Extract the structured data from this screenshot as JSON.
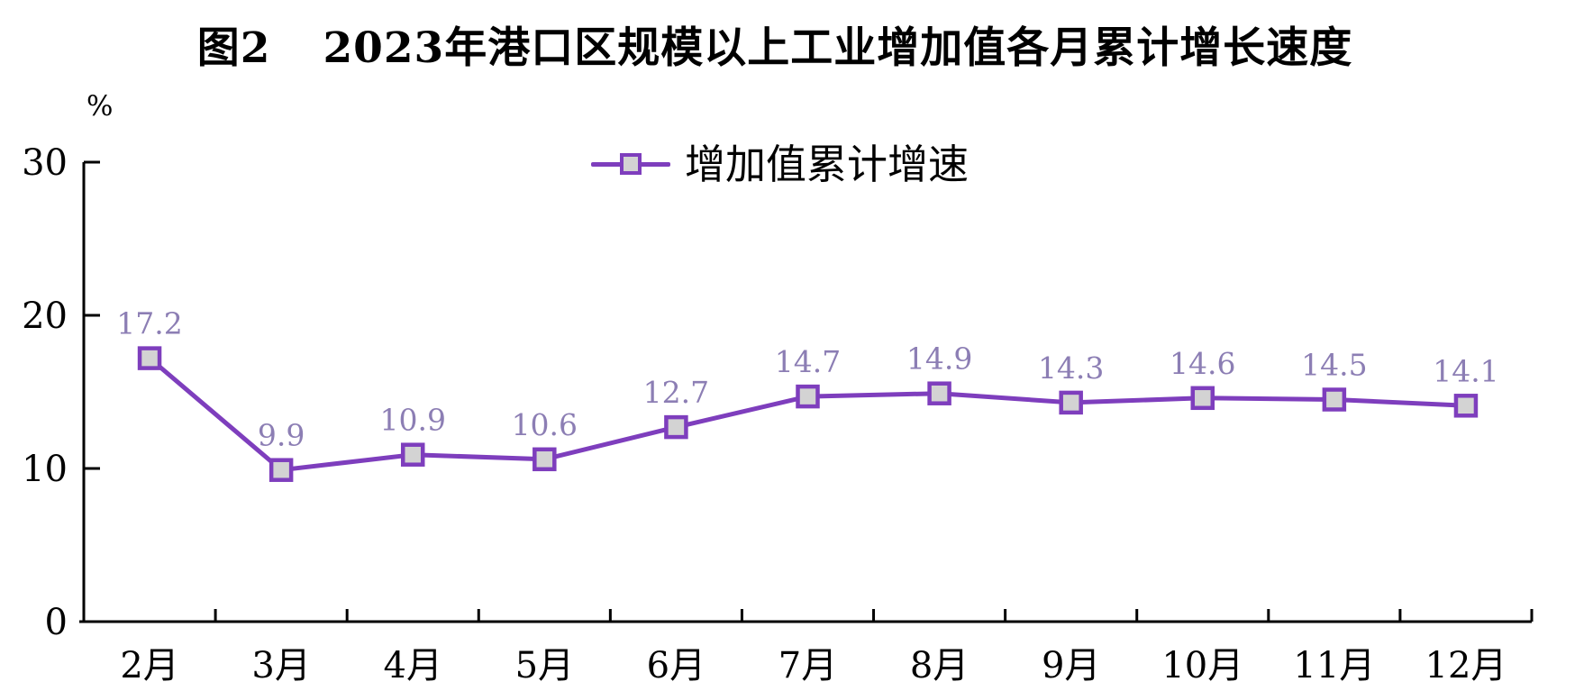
{
  "title": {
    "prefix": "图2",
    "text": "2023年港口区规模以上工业增加值各月累计增长速度"
  },
  "legend": {
    "label": "增加值累计增速"
  },
  "chart_data": {
    "type": "line",
    "title": "图2 2023年港口区规模以上工业增加值各月累计增长速度",
    "categories": [
      "2月",
      "3月",
      "4月",
      "5月",
      "6月",
      "7月",
      "8月",
      "9月",
      "10月",
      "11月",
      "12月"
    ],
    "series": [
      {
        "name": "增加值累计增速",
        "values": [
          17.2,
          9.9,
          10.9,
          10.6,
          12.7,
          14.7,
          14.9,
          14.3,
          14.6,
          14.5,
          14.1
        ]
      }
    ],
    "data_labels": [
      "17.2",
      "9.9",
      "10.9",
      "10.6",
      "12.7",
      "14.7",
      "14.9",
      "14.3",
      "14.6",
      "14.5",
      "14.1"
    ],
    "xlabel": "",
    "ylabel": "%",
    "y_ticks": [
      0,
      10,
      20,
      30
    ],
    "ylim": [
      0,
      30
    ],
    "grid": false,
    "legend_position": "top-center",
    "marker": "square"
  },
  "colors": {
    "line": "#7E3EBD",
    "marker_fill": "#D3D3D3",
    "marker_border": "#7E3EBD",
    "data_label": "#8C7EB4",
    "axis": "#000000",
    "tick_text": "#000000",
    "background": "#FFFFFF"
  }
}
